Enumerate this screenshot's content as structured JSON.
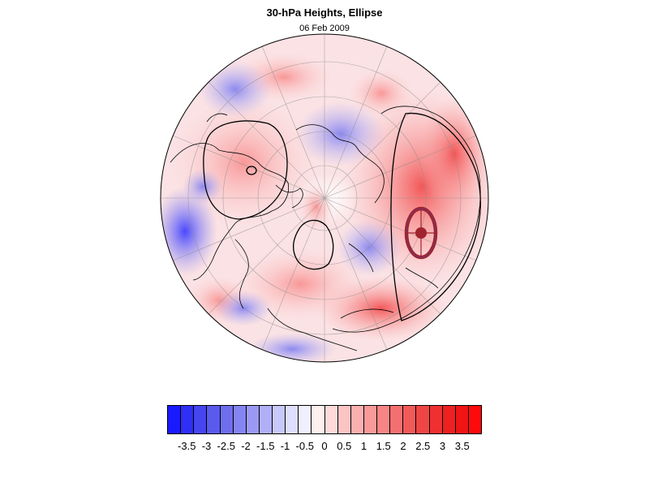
{
  "figure": {
    "title": "30-hPa Heights, Ellipse",
    "date": "06 Feb 2009"
  },
  "map": {
    "projection": "polar stereographic (north pole)",
    "colormap": "blue-white-red diverging",
    "overlays": [
      "coastlines",
      "graticule",
      "vortex-ellipse",
      "ellipse-center-marker",
      "height-contours"
    ]
  },
  "colorbar": {
    "ticks": [
      "-3.5",
      "-3",
      "-2.5",
      "-2",
      "-1.5",
      "-1",
      "-0.5",
      "0",
      "0.5",
      "1",
      "1.5",
      "2",
      "2.5",
      "3",
      "3.5"
    ],
    "colors": [
      "#1a1aff",
      "#2f2ff6",
      "#4646f0",
      "#5a5aec",
      "#6e6eef",
      "#8585f2",
      "#9a9af5",
      "#b0b0f8",
      "#c8c8fb",
      "#dedefd",
      "#f0f0ff",
      "#fff0f0",
      "#fedada",
      "#fdc4c4",
      "#fbafaf",
      "#f99a9a",
      "#f78585",
      "#f47070",
      "#f25a5a",
      "#f04545",
      "#f03030",
      "#ee2020",
      "#f11414",
      "#ff0a0a"
    ]
  },
  "colors": {
    "ellipse": "#a0232e",
    "coast": "#000000",
    "grid": "#8c8c8c"
  }
}
